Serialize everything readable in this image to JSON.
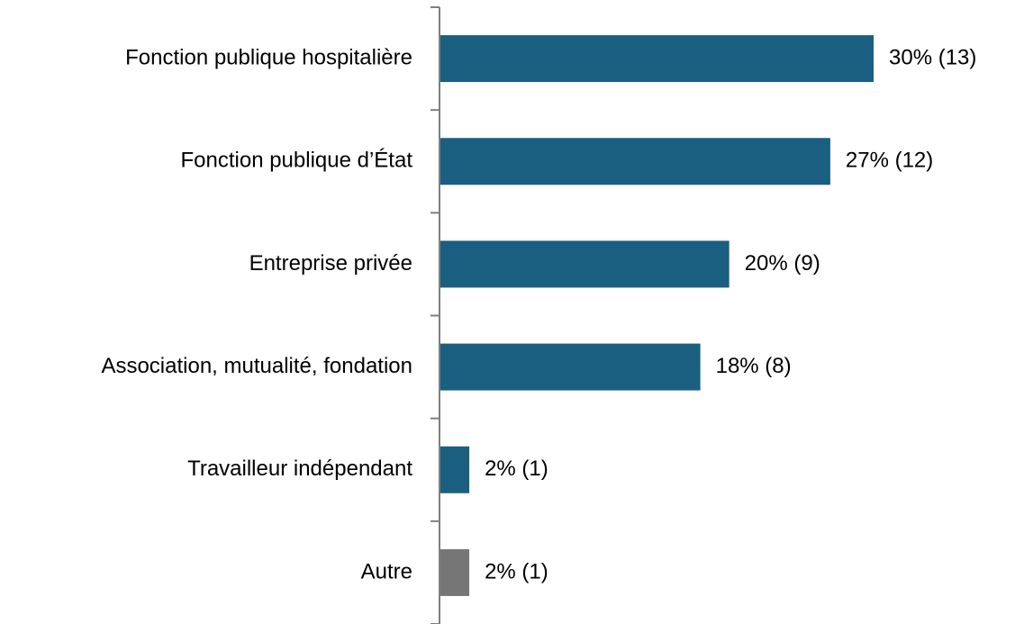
{
  "chart_data": {
    "type": "bar",
    "orientation": "horizontal",
    "categories": [
      "Fonction publique hospitalière",
      "Fonction publique d’État",
      "Entreprise privée",
      "Association, mutualité, fondation",
      "Travailleur indépendant",
      "Autre"
    ],
    "values": [
      30,
      27,
      20,
      18,
      2,
      2
    ],
    "value_labels": [
      "30% (13)",
      "27% (12)",
      "20% (9)",
      "18% (8)",
      "2% (1)",
      "2% (1)"
    ],
    "colors": [
      "#1a5f80",
      "#1a5f80",
      "#1a5f80",
      "#1a5f80",
      "#1a5f80",
      "#767676"
    ]
  }
}
